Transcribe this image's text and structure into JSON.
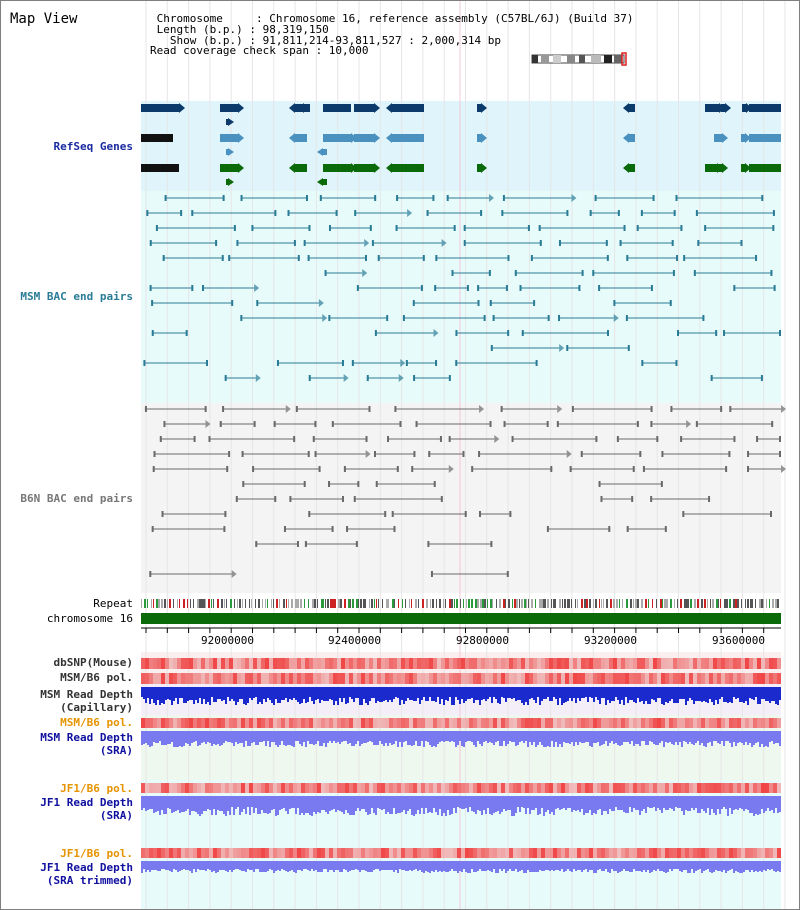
{
  "header": {
    "title": "Map View",
    "info_lines": [
      " Chromosome     : Chromosome 16, reference assembly (C57BL/6J) (Build 37)",
      " Length (b.p.) : 98,319,150",
      "   Show (b.p.) : 91,811,214-93,811,527 : 2,000,314 bp",
      "Read coverage check span : 10,000"
    ]
  },
  "tracks": {
    "refseq": "RefSeq Genes",
    "msm_bac": "MSM BAC end pairs",
    "b6n_bac": "B6N BAC end pairs",
    "repeat": "Repeat",
    "chromosome": "chromosome 16",
    "dbsnp": "dbSNP(Mouse)",
    "msm_b6_pol_1": "MSM/B6 pol.",
    "msm_read_depth_cap_1": "MSM Read Depth",
    "msm_read_depth_cap_2": "(Capillary)",
    "msm_b6_pol_2": "MSM/B6 pol.",
    "msm_read_depth_sra_1": "MSM Read Depth",
    "msm_read_depth_sra_2": "(SRA)",
    "jf1_b6_pol_1": "JF1/B6 pol.",
    "jf1_read_depth_sra_1": "JF1 Read Depth",
    "jf1_read_depth_sra_2": "(SRA)",
    "jf1_b6_pol_2": "JF1/B6 pol.",
    "jf1_read_depth_trim_1": "JF1 Read Depth",
    "jf1_read_depth_trim_2": "(SRA trimmed)"
  },
  "axis": {
    "ticks": [
      "92000000",
      "92400000",
      "92800000",
      "93200000",
      "93600000"
    ]
  },
  "colors": {
    "refseq_bg": "#dff4fb",
    "msm_bg": "#e8fbfb",
    "b6n_bg": "#f4f4f4",
    "refseq_dark": "#0b3a6b",
    "refseq_mid": "#4a91c0",
    "refseq_green": "#0a6a0a",
    "msm_line": "#2a7c96",
    "b6n_line": "#6a6a6a",
    "chrom_green": "#0a6a0a",
    "snp_red": "#f05050",
    "depth_blue": "#1a2acc",
    "depth_sra": "#7a7af0",
    "orange": "#e69400",
    "navy": "#1010a0"
  }
}
